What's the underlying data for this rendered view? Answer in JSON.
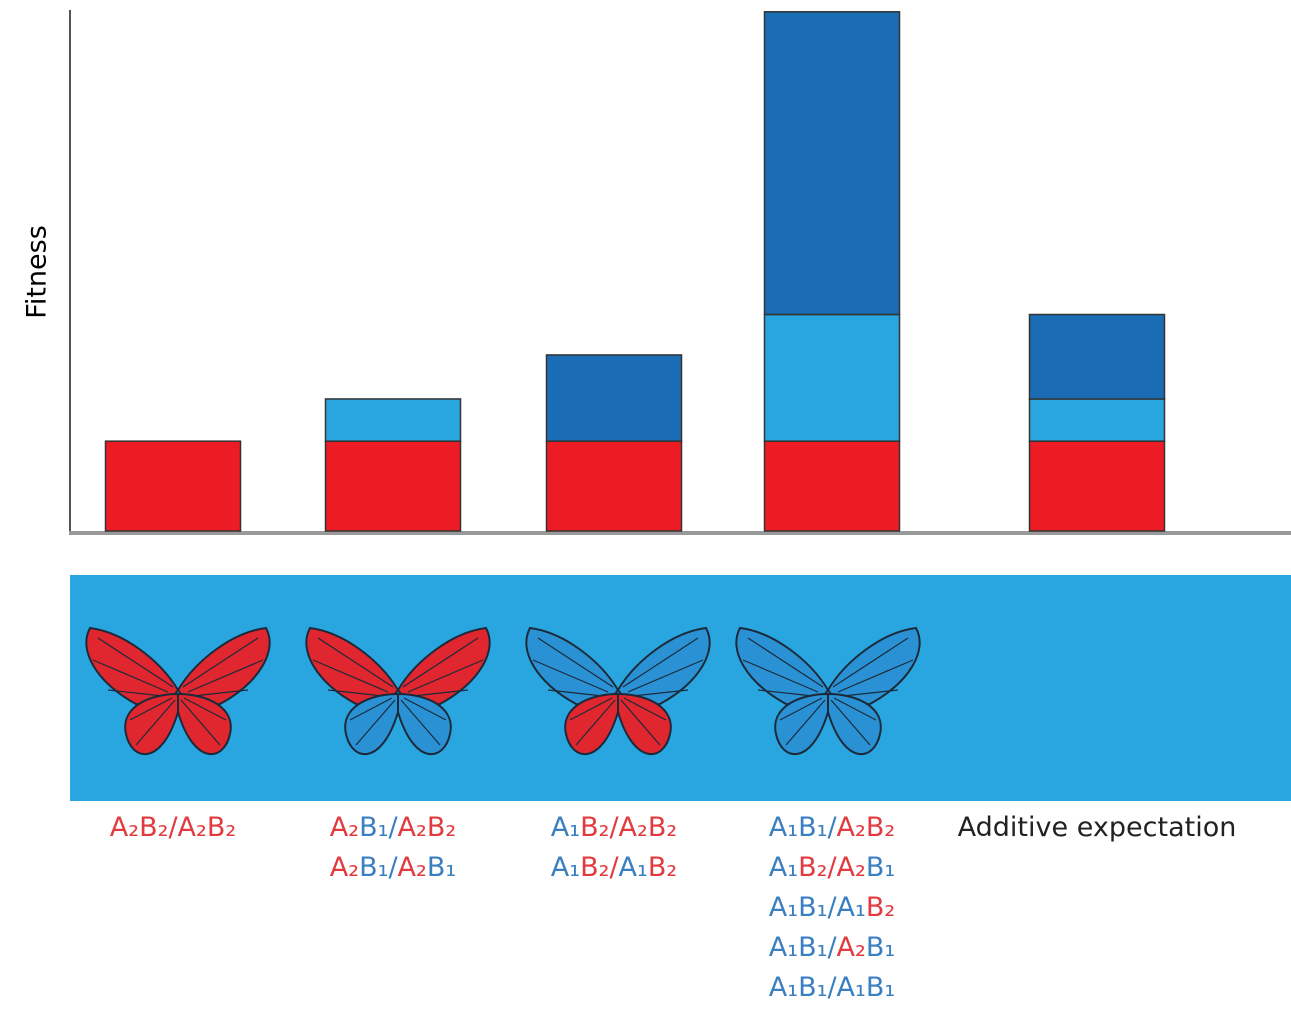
{
  "chart_data": {
    "type": "stacked-bar",
    "y_label": "Fitness",
    "categories": [
      [
        "A₂B₂/A₂B₂"
      ],
      [
        "A₂B₁/A₂B₂",
        "A₂B₁/A₂B₁"
      ],
      [
        "A₁B₂/A₂B₂",
        "A₁B₂/A₁B₂"
      ],
      [
        "A₁B₁/A₂B₂",
        "A₁B₂/A₂B₁",
        "A₁B₁/A₁B₂",
        "A₁B₁/A₂B₁",
        "A₁B₁/A₁B₁"
      ],
      [
        "Additive expectation"
      ]
    ],
    "series": [
      {
        "color": "#ed1c24",
        "values": [
          1,
          1,
          1,
          1,
          1
        ]
      },
      {
        "color": "#29a6df",
        "values": [
          null,
          0.47,
          null,
          1.41,
          0.47
        ]
      },
      {
        "color": "#1a6db5",
        "values": [
          null,
          null,
          0.96,
          3.37,
          0.94
        ]
      }
    ],
    "ylim": [
      0,
      5.8
    ],
    "label_colors": {
      "₁": "#3a7fc1",
      "₂": "#e23b3f"
    },
    "label_default_color": "#222222"
  }
}
